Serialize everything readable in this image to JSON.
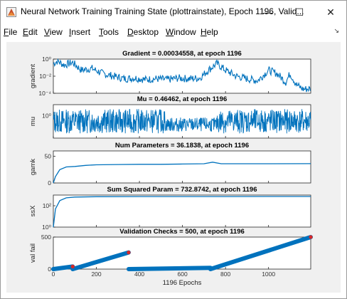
{
  "window": {
    "title": "Neural Network Training Training State (plottrainstate), Epoch 1196, Valid...",
    "minimize_glyph": "—",
    "maximize_glyph": "☐",
    "close_glyph": "✕",
    "app_icon": "matlab-figure-icon"
  },
  "menu": [
    "File",
    "Edit",
    "View",
    "Insert",
    "Tools",
    "Desktop",
    "Window",
    "Help"
  ],
  "dock_arrow": "↘",
  "colors": {
    "line": "#0072bd",
    "marker": "#d62728",
    "axes_bg": "#ffffff",
    "figure_bg": "#f0f0f0"
  },
  "chart_data": [
    {
      "type": "line",
      "title": "Gradient = 0.00034558, at epoch 1196",
      "ylabel": "gradient",
      "yscale": "log",
      "ylim": [
        0.0001,
        1
      ],
      "yticks": [
        "10⁰",
        "10⁻²",
        "10⁻⁴"
      ],
      "xlim": [
        0,
        1196
      ],
      "x": [
        0,
        20,
        50,
        90,
        130,
        180,
        230,
        280,
        330,
        380,
        430,
        480,
        530,
        580,
        630,
        680,
        720,
        760,
        800,
        850,
        900,
        950,
        1000,
        1040,
        1080,
        1100,
        1130,
        1160,
        1196
      ],
      "y": [
        0.3,
        0.6,
        0.2,
        0.4,
        0.05,
        0.08,
        0.02,
        0.01,
        0.005,
        0.006,
        0.004,
        0.005,
        0.004,
        0.006,
        0.005,
        0.006,
        0.05,
        0.3,
        0.05,
        0.01,
        0.005,
        0.003,
        0.05,
        0.02,
        0.002,
        0.02,
        0.001,
        0.0003,
        0.00034558
      ]
    },
    {
      "type": "line",
      "title": "Mu = 0.46462, at epoch 1196",
      "ylabel": "mu",
      "yscale": "log",
      "ylim": [
        0.01,
        10
      ],
      "yticks": [
        "10⁰"
      ],
      "xlim": [
        0,
        1196
      ],
      "x": [
        0,
        1196
      ],
      "y": [
        0.46462,
        0.46462
      ]
    },
    {
      "type": "line",
      "title": "Num Parameters = 36.1838, at epoch 1196",
      "ylabel": "gamk",
      "ylim": [
        0,
        60
      ],
      "yticks": [
        "50",
        "0"
      ],
      "xlim": [
        0,
        1196
      ],
      "x": [
        0,
        10,
        30,
        60,
        100,
        150,
        200,
        300,
        400,
        500,
        600,
        700,
        740,
        780,
        850,
        1000,
        1196
      ],
      "y": [
        0,
        12,
        25,
        30,
        31,
        33,
        34,
        34.5,
        35,
        35,
        35.5,
        36,
        39,
        36,
        36,
        36,
        36.1838
      ]
    },
    {
      "type": "line",
      "title": "Sum Squared Param = 732.8742, at epoch 1196",
      "ylabel": "ssX",
      "yscale": "log",
      "ylim": [
        1,
        1000
      ],
      "yticks": [
        "10²",
        "10⁰"
      ],
      "xlim": [
        0,
        1196
      ],
      "x": [
        0,
        10,
        30,
        60,
        100,
        200,
        400,
        600,
        800,
        1000,
        1196
      ],
      "y": [
        1,
        50,
        300,
        550,
        650,
        700,
        720,
        725,
        730,
        731,
        732.8742
      ]
    },
    {
      "type": "scatter",
      "title": "Validation Checks = 500, at epoch 1196",
      "ylabel": "val fail",
      "xlabel": "1196 Epochs",
      "ylim": [
        0,
        500
      ],
      "yticks": [
        "500",
        "0"
      ],
      "xlim": [
        0,
        1196
      ],
      "xticks": [
        "0",
        "200",
        "400",
        "600",
        "800",
        "1000"
      ],
      "segments": [
        {
          "x0": 0,
          "x1": 90,
          "y0": 0,
          "y1": 40
        },
        {
          "x0": 90,
          "x1": 350,
          "y0": 0,
          "y1": 260
        },
        {
          "x0": 350,
          "x1": 730,
          "y0": 0,
          "y1": 20
        },
        {
          "x0": 730,
          "x1": 1196,
          "y0": 0,
          "y1": 500
        }
      ],
      "markers": [
        {
          "x": 90,
          "y": 40
        },
        {
          "x": 350,
          "y": 260
        },
        {
          "x": 1196,
          "y": 500
        }
      ]
    }
  ]
}
